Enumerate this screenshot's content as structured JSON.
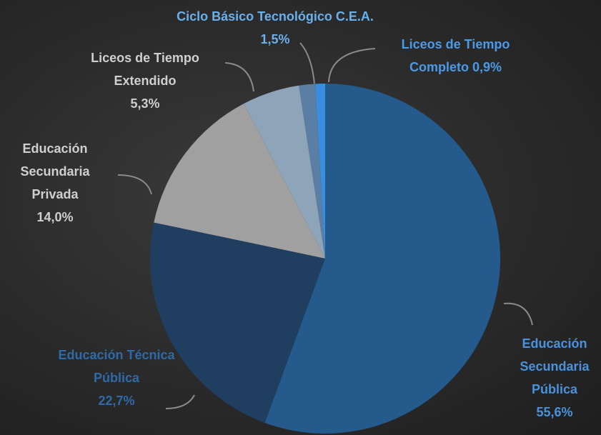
{
  "chart_data": {
    "type": "pie",
    "categories": [
      "Educación Secundaria Pública",
      "Educación Técnica Pública",
      "Educación Secundaria Privada",
      "Liceos de Tiempo Extendido",
      "Ciclo Básico Tecnológico C.E.A.",
      "Liceos de Tiempo Completo"
    ],
    "values": [
      55.6,
      22.7,
      14.0,
      5.3,
      1.5,
      0.9
    ],
    "value_labels": [
      "55,6%",
      "22,7%",
      "14,0%",
      "5,3%",
      "1,5%",
      "0,9%"
    ],
    "colors": [
      "#245a8c",
      "#1f3e60",
      "#a0a0a0",
      "#8ea4b9",
      "#5b7fa4",
      "#3a8ee0"
    ],
    "label_colors": [
      "#4a92dc",
      "#2f6aa8",
      "#cfcfcf",
      "#cfcfcf",
      "#6ab0ec",
      "#4a9ae8"
    ]
  }
}
